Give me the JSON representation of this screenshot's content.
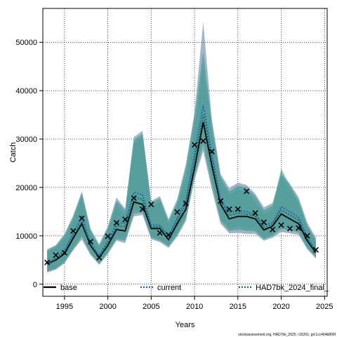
{
  "chart_data": {
    "type": "line",
    "title": "",
    "xlabel": "Years",
    "ylabel": "Catch",
    "xlim": [
      1992.5,
      2025.3
    ],
    "ylim": [
      -2500,
      57000
    ],
    "x_ticks": [
      1995,
      2000,
      2005,
      2010,
      2015,
      2020,
      2025
    ],
    "y_ticks": [
      0,
      10000,
      20000,
      30000,
      40000,
      50000
    ],
    "grid": true,
    "legend_placement": "bottom",
    "x": [
      1993,
      1994,
      1995,
      1996,
      1997,
      1998,
      1999,
      2000,
      2001,
      2002,
      2003,
      2004,
      2005,
      2006,
      2007,
      2008,
      2009,
      2010,
      2011,
      2012,
      2013,
      2014,
      2015,
      2016,
      2017,
      2018,
      2019,
      2020,
      2021,
      2022,
      2023,
      2024
    ],
    "series": [
      {
        "name": "base",
        "color": "#000000",
        "values": [
          4200,
          5000,
          6300,
          9500,
          12500,
          8000,
          5500,
          8000,
          11300,
          11000,
          17000,
          16500,
          11500,
          11500,
          9200,
          12500,
          15500,
          24000,
          33500,
          24500,
          16500,
          13500,
          14000,
          14000,
          13500,
          11200,
          12000,
          14500,
          13500,
          12500,
          9000,
          6500
        ],
        "lower": [
          2400,
          3000,
          4300,
          7000,
          9200,
          6000,
          4000,
          6200,
          9000,
          8500,
          14000,
          14300,
          9300,
          8700,
          7500,
          9800,
          13000,
          21500,
          27500,
          19500,
          12500,
          10500,
          10600,
          10400,
          10400,
          9000,
          9600,
          10800,
          10500,
          10200,
          7200,
          5300
        ],
        "upper": [
          6600,
          7500,
          9500,
          13000,
          18000,
          10600,
          7500,
          11000,
          16500,
          14500,
          29200,
          30500,
          16000,
          17000,
          12400,
          16200,
          22000,
          32000,
          45000,
          31500,
          21500,
          18500,
          19500,
          19200,
          17200,
          14500,
          15500,
          22500,
          19600,
          16500,
          11800,
          8800
        ]
      },
      {
        "name": "current",
        "color": "#1f5fbf",
        "values": [
          4400,
          5400,
          7000,
          10500,
          14000,
          8500,
          6000,
          8800,
          12600,
          12700,
          19000,
          18500,
          12200,
          12200,
          9900,
          13700,
          17400,
          27000,
          37000,
          27000,
          17500,
          14800,
          15300,
          15000,
          14400,
          12200,
          12700,
          16000,
          15000,
          13800,
          9700,
          6900
        ],
        "lower": [
          2700,
          3300,
          4800,
          7500,
          10200,
          6600,
          4400,
          6800,
          9700,
          9400,
          15200,
          15300,
          9900,
          9300,
          8100,
          10600,
          14000,
          23000,
          30000,
          21500,
          13700,
          11500,
          11900,
          11600,
          11300,
          9600,
          10300,
          11900,
          11700,
          11200,
          7800,
          5700
        ],
        "upper": [
          7200,
          8100,
          10400,
          14200,
          19200,
          11500,
          8300,
          12000,
          17900,
          15600,
          30400,
          31700,
          17200,
          18200,
          13500,
          17600,
          24800,
          35500,
          54200,
          34000,
          22800,
          19900,
          21000,
          20500,
          18700,
          15900,
          16800,
          22800,
          20800,
          18000,
          12800,
          9600
        ]
      },
      {
        "name": "HAD7bk_2024_final_",
        "color": "#1a6e5c",
        "values": [
          4300,
          5200,
          6700,
          10000,
          13000,
          8200,
          5700,
          8400,
          12000,
          11900,
          18000,
          17500,
          11800,
          11800,
          9500,
          13100,
          16500,
          25500,
          35000,
          25800,
          17000,
          14200,
          14700,
          14500,
          14000,
          11700,
          12400,
          15300,
          14300,
          13200,
          9400,
          6700
        ],
        "lower": [
          2600,
          3200,
          4500,
          7200,
          9800,
          6300,
          4200,
          6500,
          9300,
          9000,
          14600,
          14800,
          9600,
          9000,
          7800,
          10200,
          13500,
          22200,
          28700,
          20500,
          13100,
          11000,
          11300,
          11000,
          10900,
          9300,
          10000,
          11400,
          11100,
          10700,
          7500,
          5500
        ],
        "upper": [
          7000,
          7900,
          10100,
          13900,
          18800,
          11200,
          8000,
          11600,
          17300,
          15200,
          29800,
          31100,
          16700,
          17800,
          13100,
          17000,
          24000,
          34700,
          48000,
          33500,
          22300,
          19200,
          20300,
          20000,
          18200,
          15300,
          16300,
          23800,
          20400,
          17400,
          12200,
          9200
        ]
      },
      {
        "name": "observed",
        "color": "#000000",
        "values": [
          4500,
          6000,
          6500,
          11000,
          13600,
          8800,
          5500,
          9900,
          12700,
          13400,
          17800,
          15500,
          16500,
          10600,
          10200,
          14900,
          16700,
          28800,
          29600,
          27400,
          17200,
          15500,
          15500,
          19200,
          14700,
          12800,
          11300,
          12200,
          11500,
          11600,
          10000,
          7100
        ]
      }
    ],
    "legend": [
      {
        "label": "base",
        "style": "solid",
        "color": "#000000"
      },
      {
        "label": "current",
        "style": "dotted",
        "color": "#1f5fbf"
      },
      {
        "label": "HAD7bk_2024_final_",
        "style": "dotted",
        "color": "#1a6e5c"
      }
    ],
    "footer": "stockassessment.org, HAD7bk_2025, r15261, git:1cc464b806f"
  }
}
